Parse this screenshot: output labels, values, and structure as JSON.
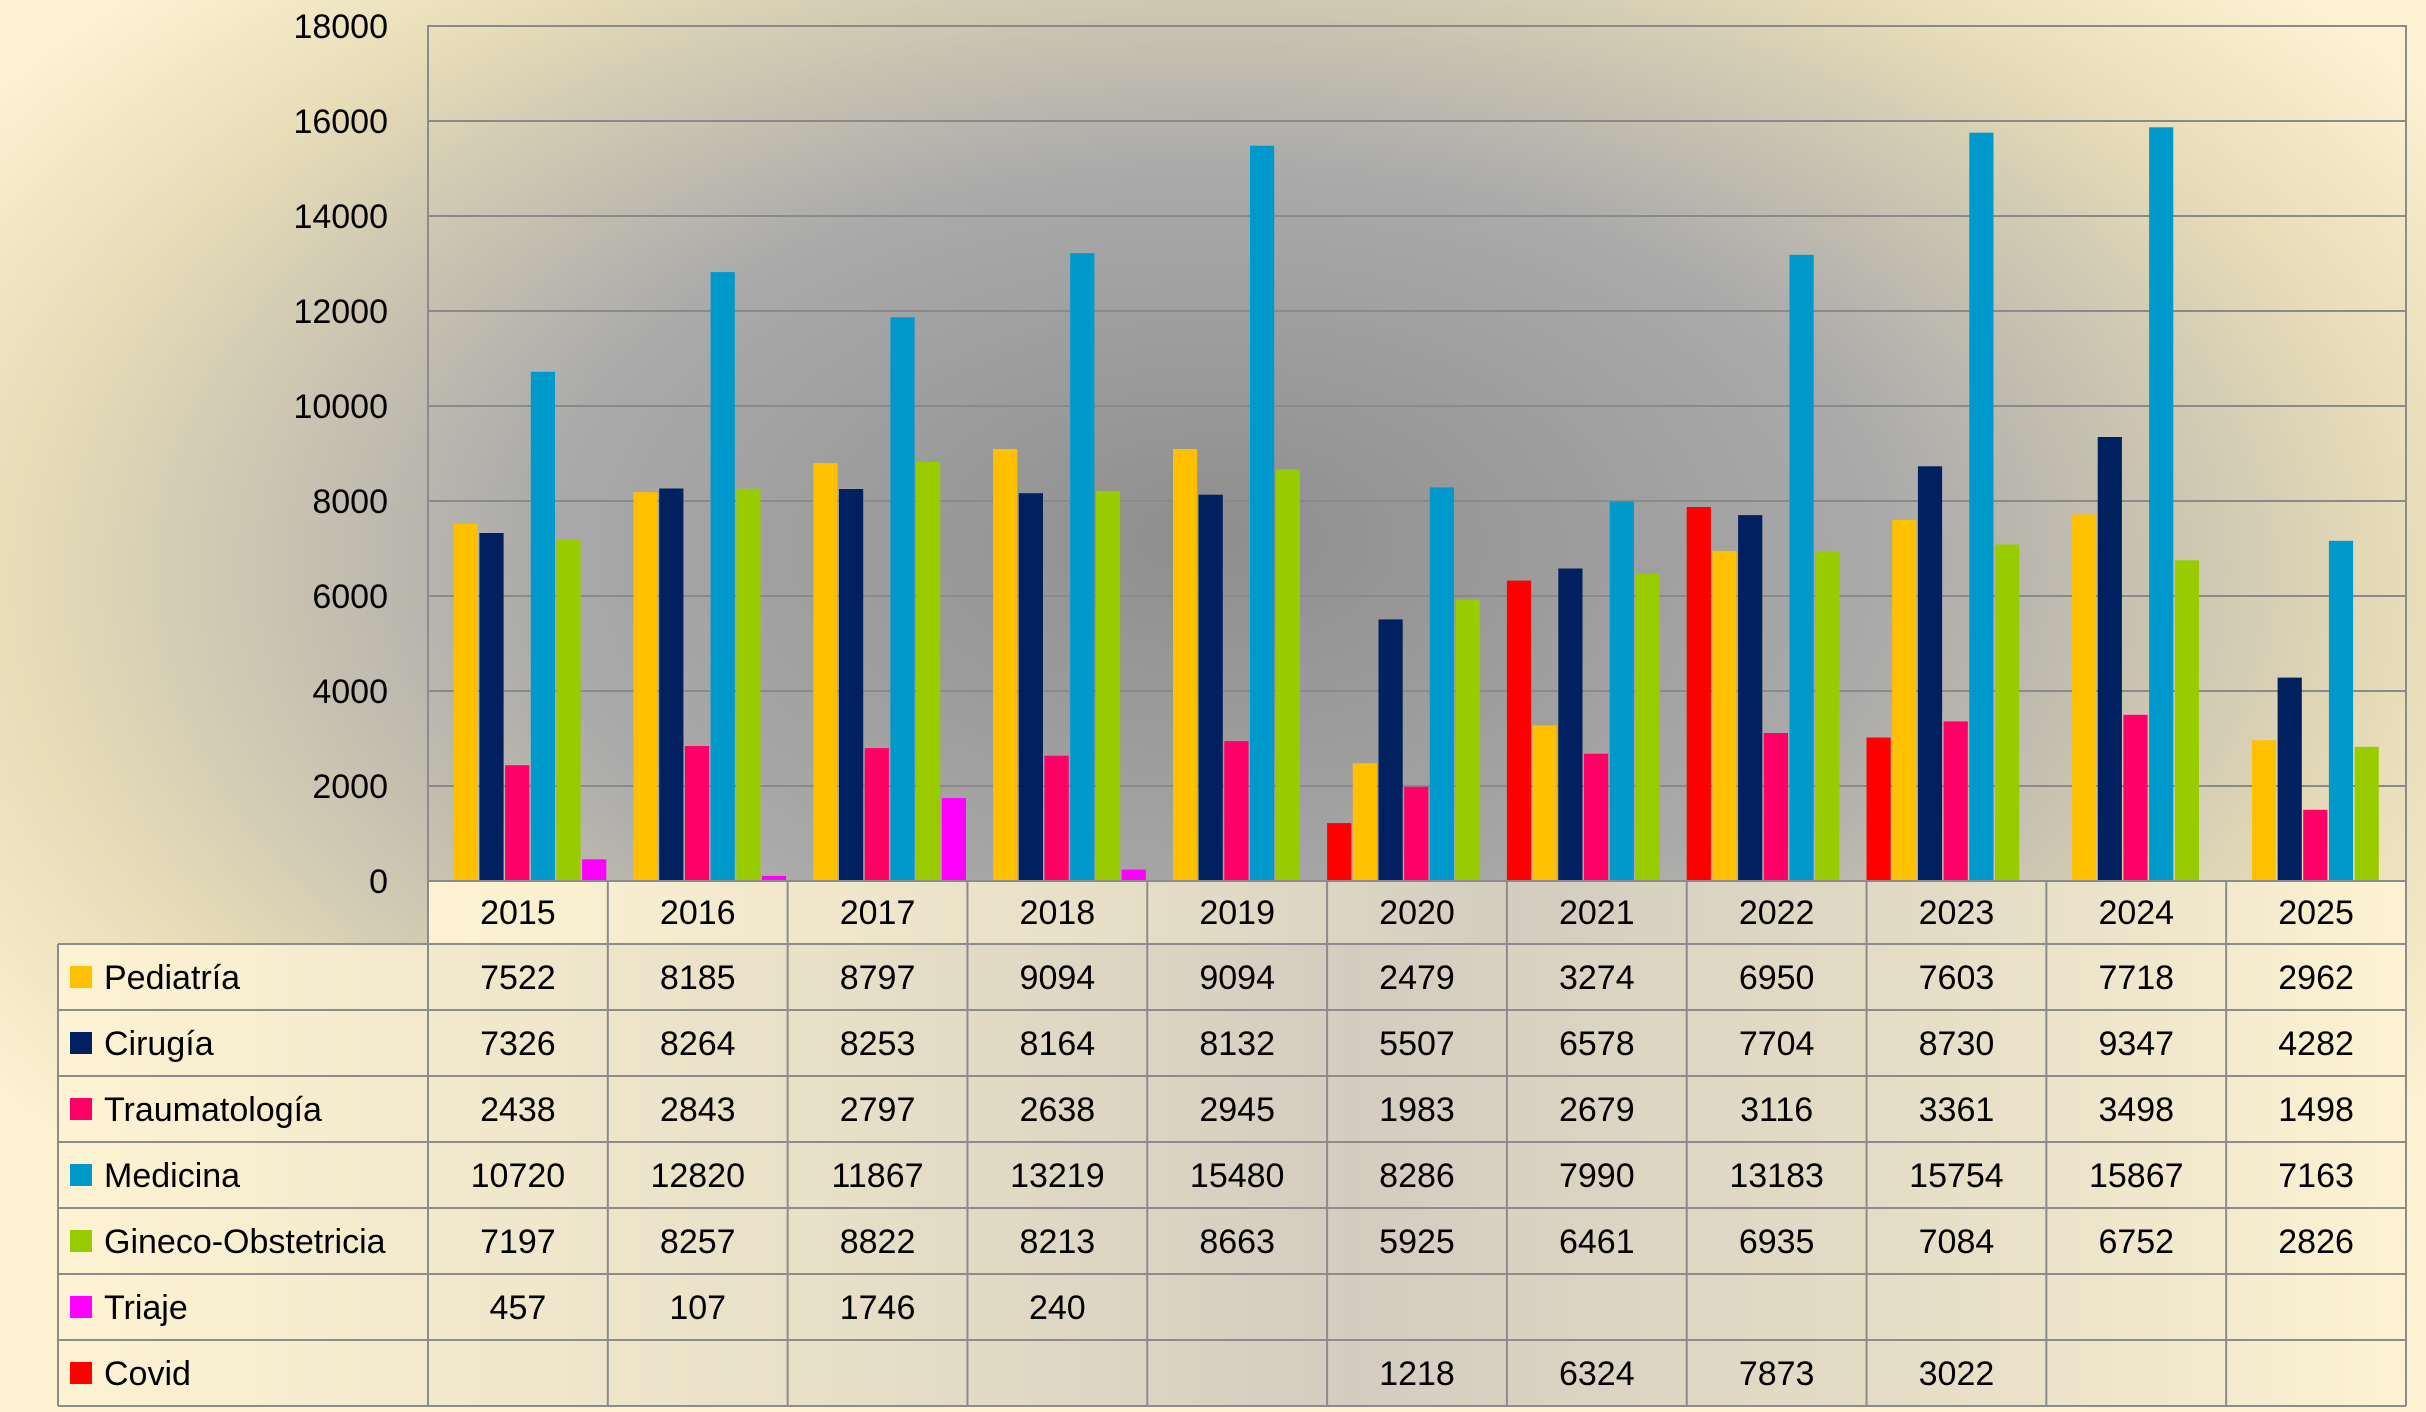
{
  "chart_data": {
    "type": "bar",
    "title": "",
    "xlabel": "",
    "ylabel": "",
    "ylim": [
      0,
      18000
    ],
    "yticks": [
      0,
      2000,
      4000,
      6000,
      8000,
      10000,
      12000,
      14000,
      16000,
      18000
    ],
    "grid": true,
    "legend": "data-table-below",
    "categories": [
      "2015",
      "2016",
      "2017",
      "2018",
      "2019",
      "2020",
      "2021",
      "2022",
      "2023",
      "2024",
      "2025"
    ],
    "bar_order": [
      "Covid",
      "Pediatría",
      "Cirugía",
      "Traumatología",
      "Medicina",
      "Gineco-Obstetricia",
      "Triaje"
    ],
    "series": [
      {
        "name": "Pediatría",
        "color": "#FFC000",
        "values": [
          7522,
          8185,
          8797,
          9094,
          9094,
          2479,
          3274,
          6950,
          7603,
          7718,
          2962
        ]
      },
      {
        "name": "Cirugía",
        "color": "#002060",
        "values": [
          7326,
          8264,
          8253,
          8164,
          8132,
          5507,
          6578,
          7704,
          8730,
          9347,
          4282
        ]
      },
      {
        "name": "Traumatología",
        "color": "#FF0066",
        "values": [
          2438,
          2843,
          2797,
          2638,
          2945,
          1983,
          2679,
          3116,
          3361,
          3498,
          1498
        ]
      },
      {
        "name": "Medicina",
        "color": "#0099CC",
        "values": [
          10720,
          12820,
          11867,
          13219,
          15480,
          8286,
          7990,
          13183,
          15754,
          15867,
          7163
        ]
      },
      {
        "name": "Gineco-Obstetricia",
        "color": "#99CC00",
        "values": [
          7197,
          8257,
          8822,
          8213,
          8663,
          5925,
          6461,
          6935,
          7084,
          6752,
          2826
        ]
      },
      {
        "name": "Triaje",
        "color": "#FF00FF",
        "values": [
          457,
          107,
          1746,
          240,
          null,
          null,
          null,
          null,
          null,
          null,
          null
        ]
      },
      {
        "name": "Covid",
        "color": "#FF0000",
        "values": [
          null,
          null,
          null,
          null,
          null,
          1218,
          6324,
          7873,
          3022,
          null,
          null
        ]
      }
    ]
  }
}
